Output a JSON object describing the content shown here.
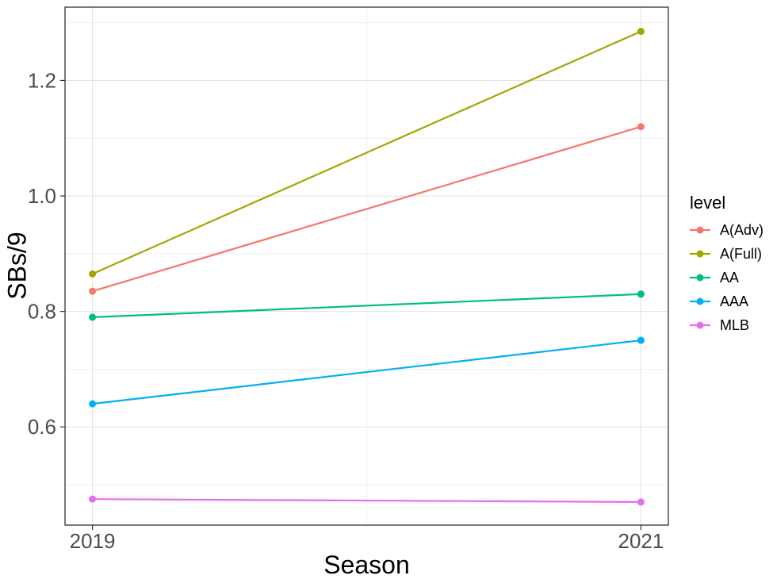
{
  "chart_data": {
    "type": "line",
    "title": "",
    "xlabel": "Season",
    "ylabel": "SBs/9",
    "x": [
      2019,
      2021
    ],
    "x_tick_labels": [
      "2019",
      "2021"
    ],
    "y_major_ticks": [
      0.6,
      0.8,
      1.0,
      1.2
    ],
    "y_tick_labels": [
      "0.6",
      "0.8",
      "1.0",
      "1.2"
    ],
    "y_minor_ticks": [
      0.5,
      0.7,
      0.9,
      1.1,
      1.3
    ],
    "x_minor_ticks": [
      2020
    ],
    "xlim": [
      2018.9,
      2021.1
    ],
    "ylim": [
      0.43,
      1.327
    ],
    "grid": true,
    "legend": {
      "title": "level",
      "position": "right"
    },
    "series": [
      {
        "name": "A(Adv)",
        "color": "#F8766D",
        "values": [
          0.835,
          1.12
        ]
      },
      {
        "name": "A(Full)",
        "color": "#A3A500",
        "values": [
          0.865,
          1.285
        ]
      },
      {
        "name": "AA",
        "color": "#00BF7D",
        "values": [
          0.79,
          0.83
        ]
      },
      {
        "name": "AAA",
        "color": "#00B0F6",
        "values": [
          0.64,
          0.75
        ]
      },
      {
        "name": "MLB",
        "color": "#E76BF3",
        "values": [
          0.475,
          0.47
        ]
      }
    ],
    "style": {
      "panel_border_color": "#333333",
      "major_grid_color": "#E4E4E4",
      "minor_grid_color": "#EFEFEF",
      "tick_color": "#333333",
      "tick_label_color": "#4D4D4D"
    }
  }
}
